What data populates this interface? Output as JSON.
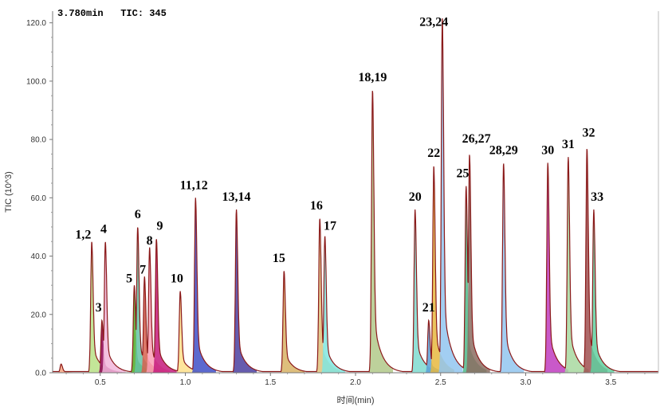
{
  "header": {
    "time": "3.780min",
    "tic": "TIC: 345"
  },
  "chart_data": {
    "type": "line",
    "xlabel": "时间(min)",
    "ylabel": "TIC (10^3)",
    "xlim": [
      0.22,
      3.78
    ],
    "ylim": [
      0,
      124
    ],
    "x_ticks": [
      "0.5",
      "1.0",
      "1.5",
      "2.0",
      "2.5",
      "3.0",
      "3.5"
    ],
    "y_ticks": [
      "0.0",
      "20.0",
      "40.0",
      "60.0",
      "80.0",
      "100.0",
      "120.0"
    ],
    "line_color": "#8b1a1a",
    "peaks": [
      {
        "x": 0.27,
        "y": 3,
        "color": "#f4a582"
      },
      {
        "x": 0.45,
        "y": 45,
        "color": "#b8e186"
      },
      {
        "x": 0.51,
        "y": 18,
        "color": "#8e0152"
      },
      {
        "x": 0.53,
        "y": 45,
        "color": "#f1b6da"
      },
      {
        "x": 0.7,
        "y": 30,
        "color": "#4dac26"
      },
      {
        "x": 0.72,
        "y": 50,
        "color": "#66c2a5"
      },
      {
        "x": 0.76,
        "y": 33,
        "color": "#d6604d"
      },
      {
        "x": 0.79,
        "y": 43,
        "color": "#fa9fb5"
      },
      {
        "x": 0.83,
        "y": 46,
        "color": "#c51b7d"
      },
      {
        "x": 0.97,
        "y": 28,
        "color": "#fee08b"
      },
      {
        "x": 1.06,
        "y": 60,
        "color": "#3f4fc7"
      },
      {
        "x": 1.3,
        "y": 56,
        "color": "#4b3fa0"
      },
      {
        "x": 1.58,
        "y": 35,
        "color": "#d8b365"
      },
      {
        "x": 1.79,
        "y": 53,
        "color": "#dfc27d"
      },
      {
        "x": 1.82,
        "y": 47,
        "color": "#80e6e0"
      },
      {
        "x": 2.1,
        "y": 97,
        "color": "#b2c98a"
      },
      {
        "x": 2.35,
        "y": 56,
        "color": "#7fdbd0"
      },
      {
        "x": 2.43,
        "y": 18,
        "color": "#5aa0d6"
      },
      {
        "x": 2.46,
        "y": 71,
        "color": "#e6b840"
      },
      {
        "x": 2.51,
        "y": 122,
        "color": "#92c5f0"
      },
      {
        "x": 2.65,
        "y": 64,
        "color": "#4fb88a"
      },
      {
        "x": 2.67,
        "y": 75,
        "color": "#8c6d62"
      },
      {
        "x": 2.87,
        "y": 72,
        "color": "#92c5f0"
      },
      {
        "x": 3.13,
        "y": 72,
        "color": "#c03cc0"
      },
      {
        "x": 3.25,
        "y": 74,
        "color": "#a8d8a0"
      },
      {
        "x": 3.36,
        "y": 77,
        "color": "#a05050"
      },
      {
        "x": 3.4,
        "y": 56,
        "color": "#5fd0a0"
      }
    ],
    "annotations": [
      {
        "text": "1,2",
        "x": 0.4,
        "y": 46
      },
      {
        "text": "3",
        "x": 0.49,
        "y": 21
      },
      {
        "text": "4",
        "x": 0.52,
        "y": 48
      },
      {
        "text": "5",
        "x": 0.67,
        "y": 31
      },
      {
        "text": "6",
        "x": 0.72,
        "y": 53
      },
      {
        "text": "7",
        "x": 0.75,
        "y": 34
      },
      {
        "text": "8",
        "x": 0.79,
        "y": 44
      },
      {
        "text": "9",
        "x": 0.85,
        "y": 49
      },
      {
        "text": "10",
        "x": 0.95,
        "y": 31
      },
      {
        "text": "11,12",
        "x": 1.05,
        "y": 63
      },
      {
        "text": "13,14",
        "x": 1.3,
        "y": 59
      },
      {
        "text": "15",
        "x": 1.55,
        "y": 38
      },
      {
        "text": "16",
        "x": 1.77,
        "y": 56
      },
      {
        "text": "17",
        "x": 1.85,
        "y": 49
      },
      {
        "text": "18,19",
        "x": 2.1,
        "y": 100
      },
      {
        "text": "20",
        "x": 2.35,
        "y": 59
      },
      {
        "text": "21",
        "x": 2.43,
        "y": 21
      },
      {
        "text": "22",
        "x": 2.46,
        "y": 74
      },
      {
        "text": "23,24",
        "x": 2.46,
        "y": 119
      },
      {
        "text": "25",
        "x": 2.63,
        "y": 67
      },
      {
        "text": "26,27",
        "x": 2.71,
        "y": 79
      },
      {
        "text": "28,29",
        "x": 2.87,
        "y": 75
      },
      {
        "text": "30",
        "x": 3.13,
        "y": 75
      },
      {
        "text": "31",
        "x": 3.25,
        "y": 77
      },
      {
        "text": "32",
        "x": 3.37,
        "y": 81
      },
      {
        "text": "33",
        "x": 3.42,
        "y": 59
      }
    ]
  }
}
